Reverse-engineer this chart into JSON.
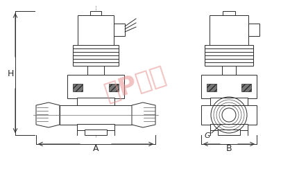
{
  "bg_color": "#ffffff",
  "line_color": "#2a2a2a",
  "watermark_color": "#e89090",
  "watermark_text": "沿P阀门",
  "label_A": "A",
  "label_B": "B",
  "label_H": "H",
  "label_G": "G",
  "fig_width": 4.18,
  "fig_height": 2.7,
  "dpi": 100
}
